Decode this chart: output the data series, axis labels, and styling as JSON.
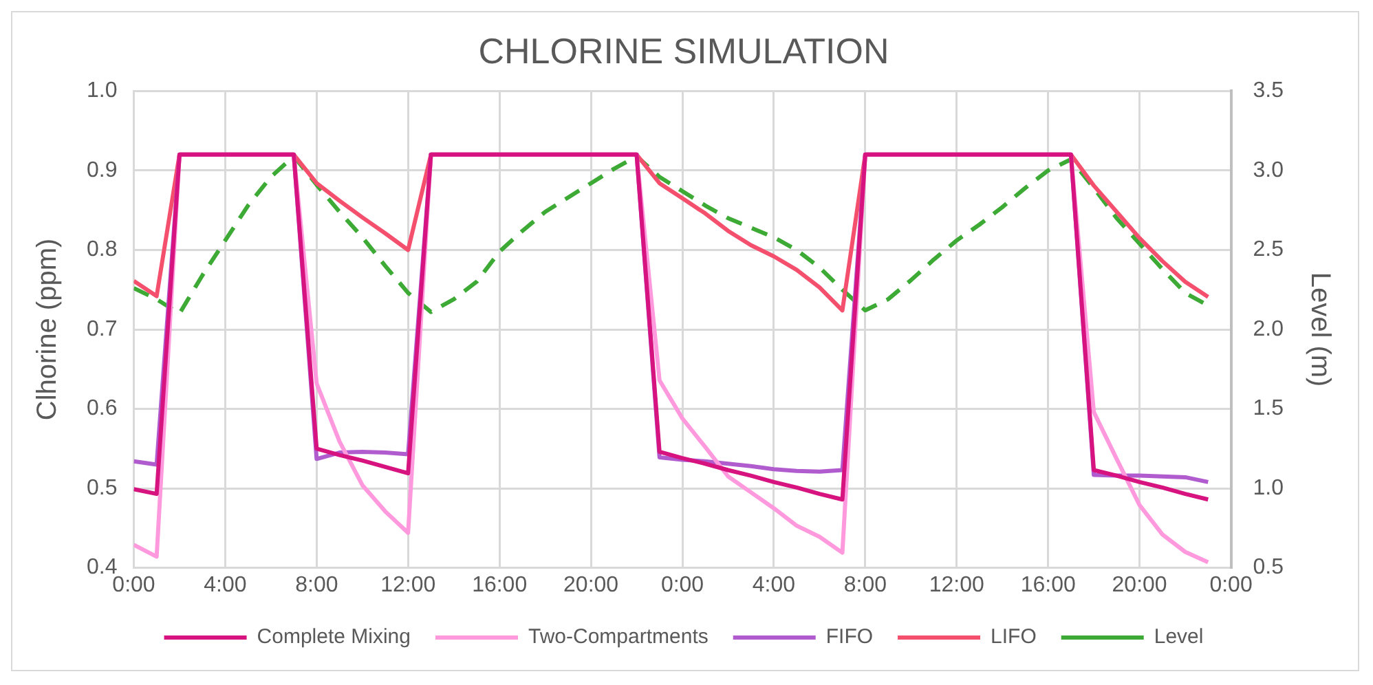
{
  "chart_data": {
    "type": "line",
    "title": "CHLORINE SIMULATION",
    "ylabel": "Clhorine (ppm)",
    "y2label": "Level (m)",
    "x": [
      "--01-01T00:00",
      "--01-01T01:00",
      "--01-01T02:00",
      "--01-01T03:00",
      "--01-01T04:00",
      "--01-01T05:00",
      "--01-01T06:00",
      "--01-01T07:00",
      "--01-01T08:00",
      "--01-01T09:00",
      "--01-01T10:00",
      "--01-01T11:00",
      "--01-01T12:00",
      "--01-01T13:00",
      "--01-01T14:00",
      "--01-01T15:00",
      "--01-01T16:00",
      "--01-01T17:00",
      "--01-01T18:00",
      "--01-01T19:00",
      "--01-01T20:00",
      "--01-01T21:00",
      "--01-01T22:00",
      "--01-01T23:00",
      "--01-02T00:00",
      "--01-02T01:00",
      "--01-02T02:00",
      "--01-02T03:00",
      "--01-02T04:00",
      "--01-02T05:00",
      "--01-02T06:00",
      "--01-02T07:00",
      "--01-02T08:00",
      "--01-02T09:00",
      "--01-02T10:00",
      "--01-02T11:00",
      "--01-02T12:00",
      "--01-02T13:00",
      "--01-02T14:00",
      "--01-02T15:00",
      "--01-02T16:00",
      "--01-02T17:00",
      "--01-02T18:00",
      "--01-02T19:00",
      "--01-02T20:00",
      "--01-02T21:00",
      "--01-02T22:00",
      "--01-02T23:00"
    ],
    "xlim": [
      "--01-01T00:00",
      "--01-03T00:00"
    ],
    "xticks": [
      {
        "value": "--01-01T00:00",
        "label": "0:00"
      },
      {
        "value": "--01-01T04:00",
        "label": "4:00"
      },
      {
        "value": "--01-01T08:00",
        "label": "8:00"
      },
      {
        "value": "--01-01T12:00",
        "label": "12:00"
      },
      {
        "value": "--01-01T16:00",
        "label": "16:00"
      },
      {
        "value": "--01-01T20:00",
        "label": "20:00"
      },
      {
        "value": "--01-02T00:00",
        "label": "0:00"
      },
      {
        "value": "--01-02T04:00",
        "label": "4:00"
      },
      {
        "value": "--01-02T08:00",
        "label": "8:00"
      },
      {
        "value": "--01-02T12:00",
        "label": "12:00"
      },
      {
        "value": "--01-02T16:00",
        "label": "16:00"
      },
      {
        "value": "--01-02T20:00",
        "label": "20:00"
      },
      {
        "value": "--01-03T00:00",
        "label": "0:00"
      }
    ],
    "ylim": [
      0.4,
      1.0
    ],
    "yticks": [
      {
        "value": 0.4,
        "label": "0.4"
      },
      {
        "value": 0.5,
        "label": "0.5"
      },
      {
        "value": 0.6,
        "label": "0.6"
      },
      {
        "value": 0.7,
        "label": "0.7"
      },
      {
        "value": 0.8,
        "label": "0.8"
      },
      {
        "value": 0.9,
        "label": "0.9"
      },
      {
        "value": 1.0,
        "label": "1.0"
      }
    ],
    "y2lim": [
      0.5,
      3.5
    ],
    "y2ticks": [
      {
        "value": 0.5,
        "label": "0.5"
      },
      {
        "value": 1.0,
        "label": "1.0"
      },
      {
        "value": 1.5,
        "label": "1.5"
      },
      {
        "value": 2.0,
        "label": "2.0"
      },
      {
        "value": 2.5,
        "label": "2.5"
      },
      {
        "value": 3.0,
        "label": "3.0"
      },
      {
        "value": 3.5,
        "label": "3.5"
      }
    ],
    "grid": true,
    "legend": "bottom",
    "marker": "none",
    "line_style": "solid",
    "series": [
      {
        "name": "Complete Mixing",
        "color": "#d6137e",
        "values": [
          0.499,
          0.493,
          0.92,
          0.92,
          0.92,
          0.92,
          0.92,
          0.92,
          0.55,
          0.542,
          0.535,
          0.527,
          0.519,
          0.92,
          0.92,
          0.92,
          0.92,
          0.92,
          0.92,
          0.92,
          0.92,
          0.92,
          0.92,
          0.546,
          0.538,
          0.531,
          0.523,
          0.516,
          0.508,
          0.501,
          0.493,
          0.486,
          0.92,
          0.92,
          0.92,
          0.92,
          0.92,
          0.92,
          0.92,
          0.92,
          0.92,
          0.92,
          0.523,
          0.516,
          0.508,
          0.501,
          0.493,
          0.486
        ]
      },
      {
        "name": "Two-Compartments",
        "color": "#ff99dd",
        "values": [
          0.429,
          0.414,
          0.92,
          0.92,
          0.92,
          0.92,
          0.92,
          0.92,
          0.632,
          0.559,
          0.504,
          0.471,
          0.444,
          0.92,
          0.92,
          0.92,
          0.92,
          0.92,
          0.92,
          0.92,
          0.92,
          0.92,
          0.92,
          0.636,
          0.588,
          0.552,
          0.515,
          0.495,
          0.475,
          0.453,
          0.439,
          0.419,
          0.92,
          0.92,
          0.92,
          0.92,
          0.92,
          0.92,
          0.92,
          0.92,
          0.92,
          0.92,
          0.596,
          0.537,
          0.479,
          0.442,
          0.42,
          0.407
        ]
      },
      {
        "name": "FIFO",
        "color": "#b05ccf",
        "values": [
          0.534,
          0.53,
          0.92,
          0.92,
          0.92,
          0.92,
          0.92,
          0.92,
          0.537,
          0.545,
          0.546,
          0.545,
          0.543,
          0.92,
          0.92,
          0.92,
          0.92,
          0.92,
          0.92,
          0.92,
          0.92,
          0.92,
          0.92,
          0.539,
          0.536,
          0.534,
          0.531,
          0.528,
          0.524,
          0.522,
          0.521,
          0.523,
          0.92,
          0.92,
          0.92,
          0.92,
          0.92,
          0.92,
          0.92,
          0.92,
          0.92,
          0.92,
          0.517,
          0.516,
          0.516,
          0.515,
          0.514,
          0.508
        ]
      },
      {
        "name": "LIFO",
        "color": "#f4506e",
        "values": [
          0.761,
          0.742,
          0.92,
          0.92,
          0.92,
          0.92,
          0.92,
          0.92,
          0.884,
          0.862,
          0.841,
          0.821,
          0.8,
          0.92,
          0.92,
          0.92,
          0.92,
          0.92,
          0.92,
          0.92,
          0.92,
          0.92,
          0.92,
          0.884,
          0.865,
          0.846,
          0.824,
          0.806,
          0.792,
          0.775,
          0.753,
          0.724,
          0.92,
          0.92,
          0.92,
          0.92,
          0.92,
          0.92,
          0.92,
          0.92,
          0.92,
          0.92,
          0.881,
          0.848,
          0.815,
          0.786,
          0.76,
          0.741
        ]
      },
      {
        "name": "Level",
        "color": "#3daa35",
        "axis": "y2",
        "line_style": "dashed",
        "values": [
          2.26,
          2.19,
          2.1,
          2.34,
          2.56,
          2.78,
          2.96,
          3.09,
          2.91,
          2.74,
          2.58,
          2.4,
          2.23,
          2.11,
          2.19,
          2.3,
          2.49,
          2.62,
          2.74,
          2.83,
          2.92,
          3.01,
          3.09,
          2.96,
          2.87,
          2.78,
          2.7,
          2.64,
          2.58,
          2.5,
          2.39,
          2.25,
          2.12,
          2.19,
          2.31,
          2.44,
          2.56,
          2.66,
          2.77,
          2.89,
          3.0,
          3.07,
          2.89,
          2.7,
          2.54,
          2.38,
          2.23,
          2.15
        ]
      }
    ]
  }
}
